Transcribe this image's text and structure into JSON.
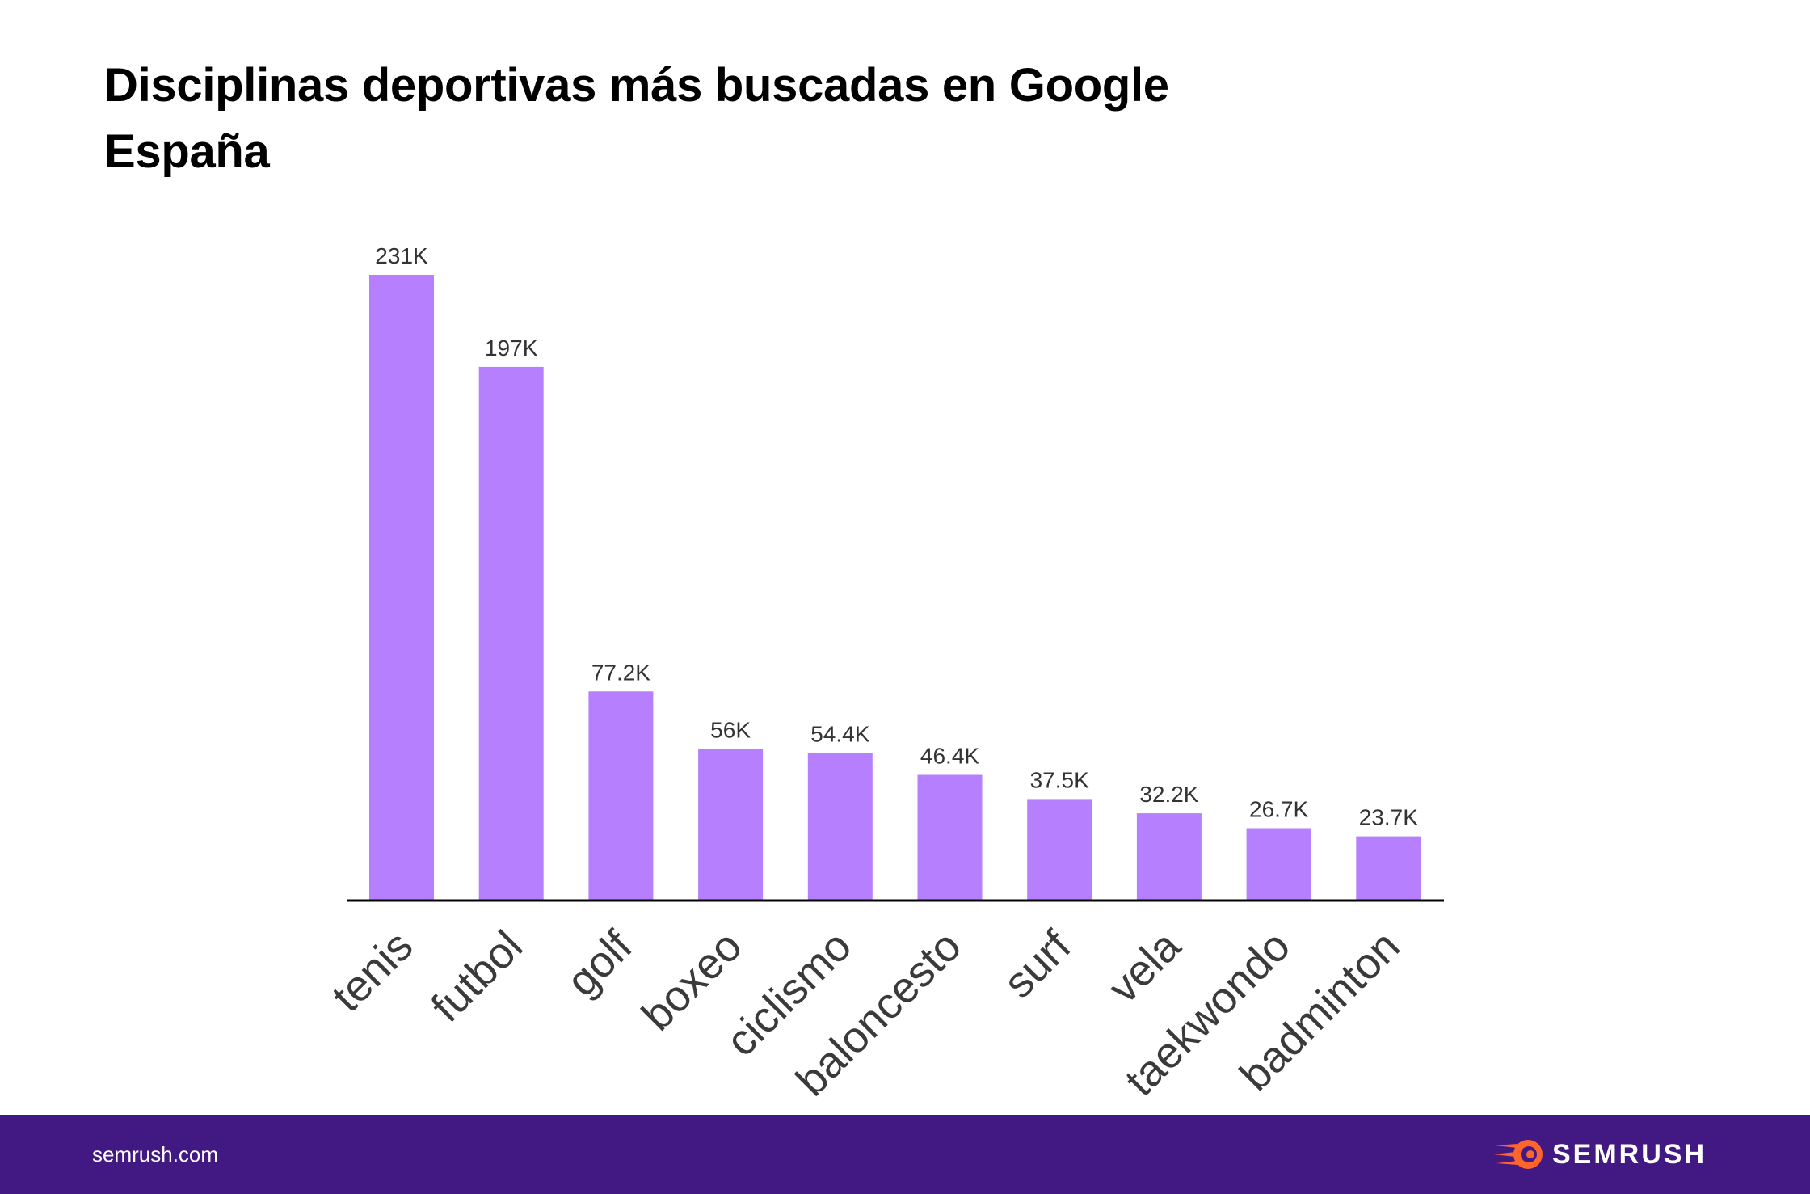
{
  "colors": {
    "bar": "#b67ffd",
    "axis": "#000000",
    "footer_bg": "#421983",
    "logo_accent": "#ff642d"
  },
  "chart_data": {
    "type": "bar",
    "title": "Disciplinas deportivas más buscadas en Google España",
    "categories": [
      "tenis",
      "futbol",
      "golf",
      "boxeo",
      "ciclismo",
      "baloncesto",
      "surf",
      "vela",
      "taekwondo",
      "badminton"
    ],
    "values": [
      231000,
      197000,
      77200,
      56000,
      54400,
      46400,
      37500,
      32200,
      26700,
      23700
    ],
    "value_labels": [
      "231K",
      "197K",
      "77.2K",
      "56K",
      "54.4K",
      "46.4K",
      "37.5K",
      "32.2K",
      "26.7K",
      "23.7K"
    ],
    "xlabel": "",
    "ylabel": "",
    "grid": false,
    "legend": "none",
    "y_axis_visible": false
  },
  "footer": {
    "site": "semrush.com",
    "logo_text": "SEMRUSH",
    "logo_icon": "semrush-fireball-icon"
  }
}
